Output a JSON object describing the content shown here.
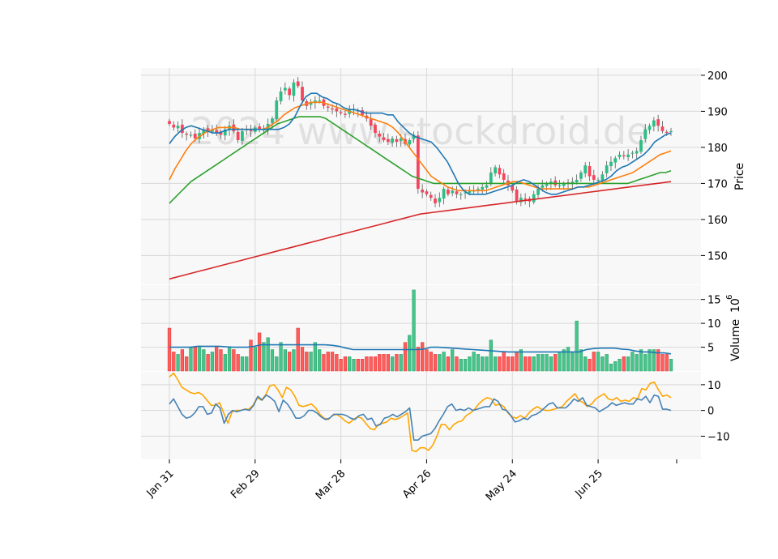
{
  "chart_data": {
    "type": "candlestick",
    "watermark": "2024 www.stockdroid.de",
    "x_ticks": [
      "Jan 31",
      "Feb 29",
      "Mar 28",
      "Apr 26",
      "May 24",
      "Jun 25"
    ],
    "x_tick_index": [
      0,
      20,
      40,
      60,
      80,
      100
    ],
    "colors": {
      "up": "#2ebd85",
      "down": "#f6465d",
      "vol_up": "#47c48a",
      "vol_down": "#ff5c5c",
      "ma_fast": "#1f77b4",
      "ma_mid": "#ff7f0e",
      "ma_slow": "#2ca02c",
      "ma_long": "#d62728",
      "vol_ma": "#1f77b4",
      "ind_a": "#4682b4",
      "ind_b": "#ffa500",
      "grid": "#d9d9d9",
      "panel_bg": "#f8f8f8"
    },
    "price_panel": {
      "ylabel": "Price",
      "ylim": [
        142,
        202
      ],
      "yticks": [
        150,
        160,
        170,
        180,
        190,
        200
      ],
      "close": [
        186.5,
        185.5,
        186.0,
        184.0,
        183.5,
        183.5,
        182.5,
        184.0,
        185.0,
        184.5,
        185.0,
        184.0,
        183.5,
        185.0,
        186.0,
        184.5,
        182.0,
        184.5,
        185.0,
        184.5,
        185.5,
        185.0,
        185.0,
        186.5,
        188.0,
        193.0,
        195.5,
        196.5,
        194.5,
        198.0,
        197.0,
        193.0,
        191.5,
        192.5,
        193.0,
        193.0,
        191.5,
        191.0,
        190.5,
        190.0,
        189.5,
        189.0,
        190.5,
        190.5,
        190.0,
        189.0,
        188.0,
        186.0,
        184.0,
        183.0,
        182.0,
        181.5,
        182.5,
        181.5,
        182.5,
        181.0,
        182.0,
        183.5,
        168.5,
        167.5,
        167.0,
        166.0,
        164.5,
        166.0,
        168.5,
        167.0,
        168.0,
        167.0,
        167.0,
        167.5,
        168.0,
        168.0,
        168.5,
        169.0,
        169.5,
        173.0,
        174.5,
        172.5,
        171.0,
        169.5,
        168.0,
        165.0,
        166.0,
        165.5,
        165.0,
        167.0,
        168.5,
        169.5,
        170.0,
        170.5,
        169.5,
        169.5,
        170.0,
        170.0,
        170.5,
        171.0,
        173.0,
        175.0,
        172.0,
        171.0,
        171.0,
        172.5,
        175.0,
        176.0,
        177.0,
        178.0,
        177.5,
        178.0,
        178.5,
        179.0,
        182.0,
        185.0,
        186.0,
        187.5,
        186.0,
        184.5,
        184.0,
        184.5
      ],
      "ma_fast": [
        181,
        183,
        184.5,
        185.5,
        186,
        185.5,
        185,
        184.5,
        184,
        184,
        184.5,
        185,
        185,
        185,
        185,
        185,
        185,
        185,
        185,
        185,
        185,
        185.5,
        186.5,
        188.5,
        191.5,
        194,
        195,
        195,
        194,
        193.5,
        192.5,
        192,
        191,
        190.5,
        190.5,
        190,
        189.5,
        189.5,
        189.5,
        189.5,
        189,
        189,
        187,
        185.5,
        184,
        183,
        182.5,
        182,
        181.5,
        180,
        178,
        176,
        173,
        170,
        168,
        167,
        167,
        167,
        167,
        167.5,
        168,
        168.5,
        169,
        169.5,
        170.5,
        171,
        170.5,
        169.5,
        168.5,
        167.5,
        167,
        167,
        167.5,
        168,
        168.5,
        169,
        169,
        169.5,
        170,
        170.5,
        171,
        172,
        173.5,
        174.5,
        175,
        176,
        177,
        178,
        179.5,
        181.5,
        182.5,
        183.5,
        184
      ],
      "ma_mid": [
        171,
        174,
        176.5,
        179,
        181,
        182.5,
        183.5,
        184.5,
        185,
        185.5,
        185.5,
        185.5,
        185.5,
        185,
        185,
        185,
        185,
        185,
        185.5,
        186.5,
        187.5,
        189,
        190,
        191,
        191.5,
        192,
        192.5,
        192.5,
        192.5,
        192,
        191.5,
        191,
        190.5,
        190,
        189.5,
        189,
        188.5,
        188,
        187.5,
        187,
        186.5,
        185.5,
        184,
        182,
        180,
        178,
        176,
        174,
        172,
        171,
        170,
        169,
        168.5,
        168,
        168,
        168,
        168,
        168,
        168,
        168.5,
        169,
        169.5,
        170,
        170.5,
        170.5,
        170,
        169.5,
        169,
        168.5,
        168.5,
        168.5,
        168.5,
        168.5,
        168.5,
        168.5,
        169,
        169,
        169,
        169.5,
        170,
        170.5,
        171,
        171.5,
        172,
        172.5,
        173,
        174,
        175,
        176,
        177,
        178,
        178.5,
        179
      ],
      "ma_slow": [
        164.5,
        166,
        167.5,
        169,
        170.5,
        171.5,
        172.5,
        173.5,
        174.5,
        175.5,
        176.5,
        177.5,
        178.5,
        179.5,
        180.5,
        181.5,
        182.5,
        183.5,
        184.5,
        185.5,
        186.5,
        187,
        187.5,
        188,
        188.5,
        188.5,
        188.5,
        188.5,
        188.5,
        188,
        187,
        186,
        185,
        184,
        183,
        182,
        181,
        180,
        179,
        178,
        177,
        176,
        175,
        174,
        173,
        172,
        171.5,
        171,
        170.5,
        170,
        170,
        170,
        170,
        170,
        170,
        170,
        170,
        170,
        170,
        170,
        170,
        170,
        170,
        170,
        170,
        170,
        170,
        170,
        170,
        170,
        170,
        170,
        170,
        170,
        170,
        170,
        170,
        170,
        170,
        170,
        170,
        170,
        170,
        170,
        170,
        170,
        170.5,
        171,
        171.5,
        172,
        172.5,
        173,
        173,
        173.5
      ],
      "ma_long": [
        143.5,
        144.5,
        145.5,
        146.5,
        147.5,
        148.5,
        149.5,
        150.5,
        151.5,
        152.5,
        153.5,
        154.5,
        155.5,
        156.5,
        157.5,
        158.5,
        159.5,
        160.5,
        161.5,
        162,
        162.5,
        163,
        163.5,
        164,
        164.5,
        165,
        165.5,
        166,
        166.5,
        167,
        167.5,
        168,
        168.5,
        169,
        169.5,
        170,
        170.5
      ]
    },
    "volume_panel": {
      "ylabel": "Volume",
      "ylabel_exp": "6",
      "ylim": [
        0,
        18
      ],
      "yticks": [
        5,
        10,
        15
      ],
      "values": [
        9,
        4,
        3.5,
        4.5,
        3,
        5,
        5,
        5,
        4.5,
        3.5,
        4,
        5,
        4.5,
        3.5,
        5,
        4.5,
        3.5,
        3,
        3,
        6.5,
        5,
        8,
        6,
        7,
        4.5,
        3,
        6,
        4.5,
        4,
        4.5,
        9,
        5,
        4,
        4,
        6,
        4.5,
        3.5,
        4,
        4,
        3.5,
        2.5,
        3,
        3,
        2.5,
        2.5,
        2.5,
        3,
        3,
        3,
        3.5,
        3.5,
        3.5,
        3,
        3.5,
        3.5,
        6,
        7.5,
        17,
        5,
        6,
        4.5,
        4,
        3.5,
        3.5,
        4,
        3,
        4.5,
        3,
        2.5,
        2.5,
        3,
        4,
        3.5,
        3,
        3,
        6.5,
        3,
        3,
        4,
        3,
        3,
        4,
        4.5,
        3,
        3,
        3,
        3.5,
        3.5,
        3.5,
        3,
        3.5,
        4,
        4.5,
        5,
        4,
        10.5,
        4.5,
        3,
        2.5,
        4,
        4,
        3,
        3.5,
        1.5,
        2,
        2.5,
        3,
        3,
        4,
        3.5,
        4.5,
        3.5,
        4.5,
        4.5,
        4.5,
        3.5,
        3.5,
        2.5
      ],
      "ma": [
        5,
        5,
        5,
        5,
        5.2,
        5.2,
        5.2,
        5.2,
        5.1,
        5,
        5,
        5,
        5.2,
        5.5,
        5.5,
        5.5,
        5.5,
        5.5,
        5.5,
        5.5,
        5.5,
        5.5,
        5.5,
        5.4,
        5.2,
        4.8,
        4.5,
        4.5,
        4.5,
        4.5,
        4.5,
        4.5,
        4.5,
        4.5,
        4.5,
        4.5,
        4.6,
        5,
        5,
        4.9,
        4.8,
        4.7,
        4.6,
        4.5,
        4.4,
        4.3,
        4.2,
        4.1,
        4,
        4,
        4,
        4,
        4,
        4,
        4,
        4,
        4,
        4,
        4,
        4.5,
        4.7,
        4.8,
        4.8,
        4.8,
        4.6,
        4.5,
        4.2,
        4,
        4,
        3.8,
        3.8,
        3.6
      ]
    },
    "indicator_panel": {
      "ylim": [
        -19,
        15
      ],
      "yticks": [
        -10,
        0,
        10
      ],
      "series_a": [
        2.5,
        4.5,
        1.5,
        -1.5,
        -3,
        -2.5,
        -1,
        1.5,
        1.5,
        -1.5,
        -1,
        2.5,
        1,
        -5,
        -1.5,
        0,
        -0.5,
        0,
        0.5,
        0,
        2,
        5.5,
        4,
        6,
        5,
        3.5,
        -0.5,
        4,
        2.5,
        0,
        -3,
        -3,
        -2,
        0,
        0,
        -1,
        -2.5,
        -3.5,
        -3,
        -1.5,
        -1.5,
        -1.5,
        -2,
        -3,
        -3.5,
        -2,
        -1.5,
        -3.5,
        -3,
        -6,
        -5.5,
        -3,
        -2.5,
        -1.5,
        -2.5,
        -1.5,
        -0.5,
        1,
        -11.5,
        -11.5,
        -10,
        -9.5,
        -9,
        -7,
        -4,
        -1.5,
        1.5,
        2.5,
        0,
        0.5,
        0,
        1,
        0,
        0.5,
        1,
        1.5,
        1.5,
        4.5,
        3.5,
        0.5,
        0,
        -2,
        -4.5,
        -4,
        -3,
        -3.5,
        -2,
        -1.5,
        -0.5,
        1,
        2.5,
        3,
        1,
        1,
        1,
        2.5,
        4.5,
        3.5,
        5,
        2,
        1.5,
        1,
        -0.5,
        0.5,
        1.5,
        3,
        2,
        2.5,
        3,
        2.5,
        2.5,
        4.5,
        4,
        5.5,
        3,
        6,
        5.5,
        0.5,
        0.5,
        0
      ],
      "series_b": [
        13,
        14.5,
        12,
        9,
        8,
        7,
        6.5,
        7,
        6,
        4,
        2,
        2,
        3,
        -1,
        -5,
        -0.5,
        0,
        0,
        0.5,
        0.5,
        2,
        5,
        4,
        6,
        9.5,
        10,
        8,
        5,
        9,
        8,
        5.5,
        2,
        1.5,
        2,
        2.5,
        1,
        -1.5,
        -3,
        -3.5,
        -2,
        -1.5,
        -2.5,
        -4,
        -5,
        -3.5,
        -2.5,
        -3,
        -5,
        -7,
        -7.5,
        -5.5,
        -5,
        -4.5,
        -3,
        -3.5,
        -3,
        -2,
        -1,
        -15.5,
        -16,
        -14.5,
        -14.5,
        -15.5,
        -13.5,
        -10,
        -5.5,
        -5.5,
        -7.5,
        -5.5,
        -4.5,
        -4,
        -2,
        -1,
        0.5,
        2.5,
        4,
        5,
        4.5,
        2,
        2.5,
        1.5,
        -1,
        -2.5,
        -3,
        -2,
        -3,
        -1,
        0.5,
        1.5,
        0.5,
        0,
        0,
        0.5,
        1,
        1.5,
        3.5,
        5,
        6.5,
        4,
        3,
        1.5,
        2.5,
        4.5,
        5.5,
        6.5,
        4.5,
        4,
        5,
        3.5,
        4,
        3.5,
        5,
        4.5,
        8.5,
        8,
        10.5,
        11,
        8,
        5.5,
        6,
        5
      ]
    }
  }
}
